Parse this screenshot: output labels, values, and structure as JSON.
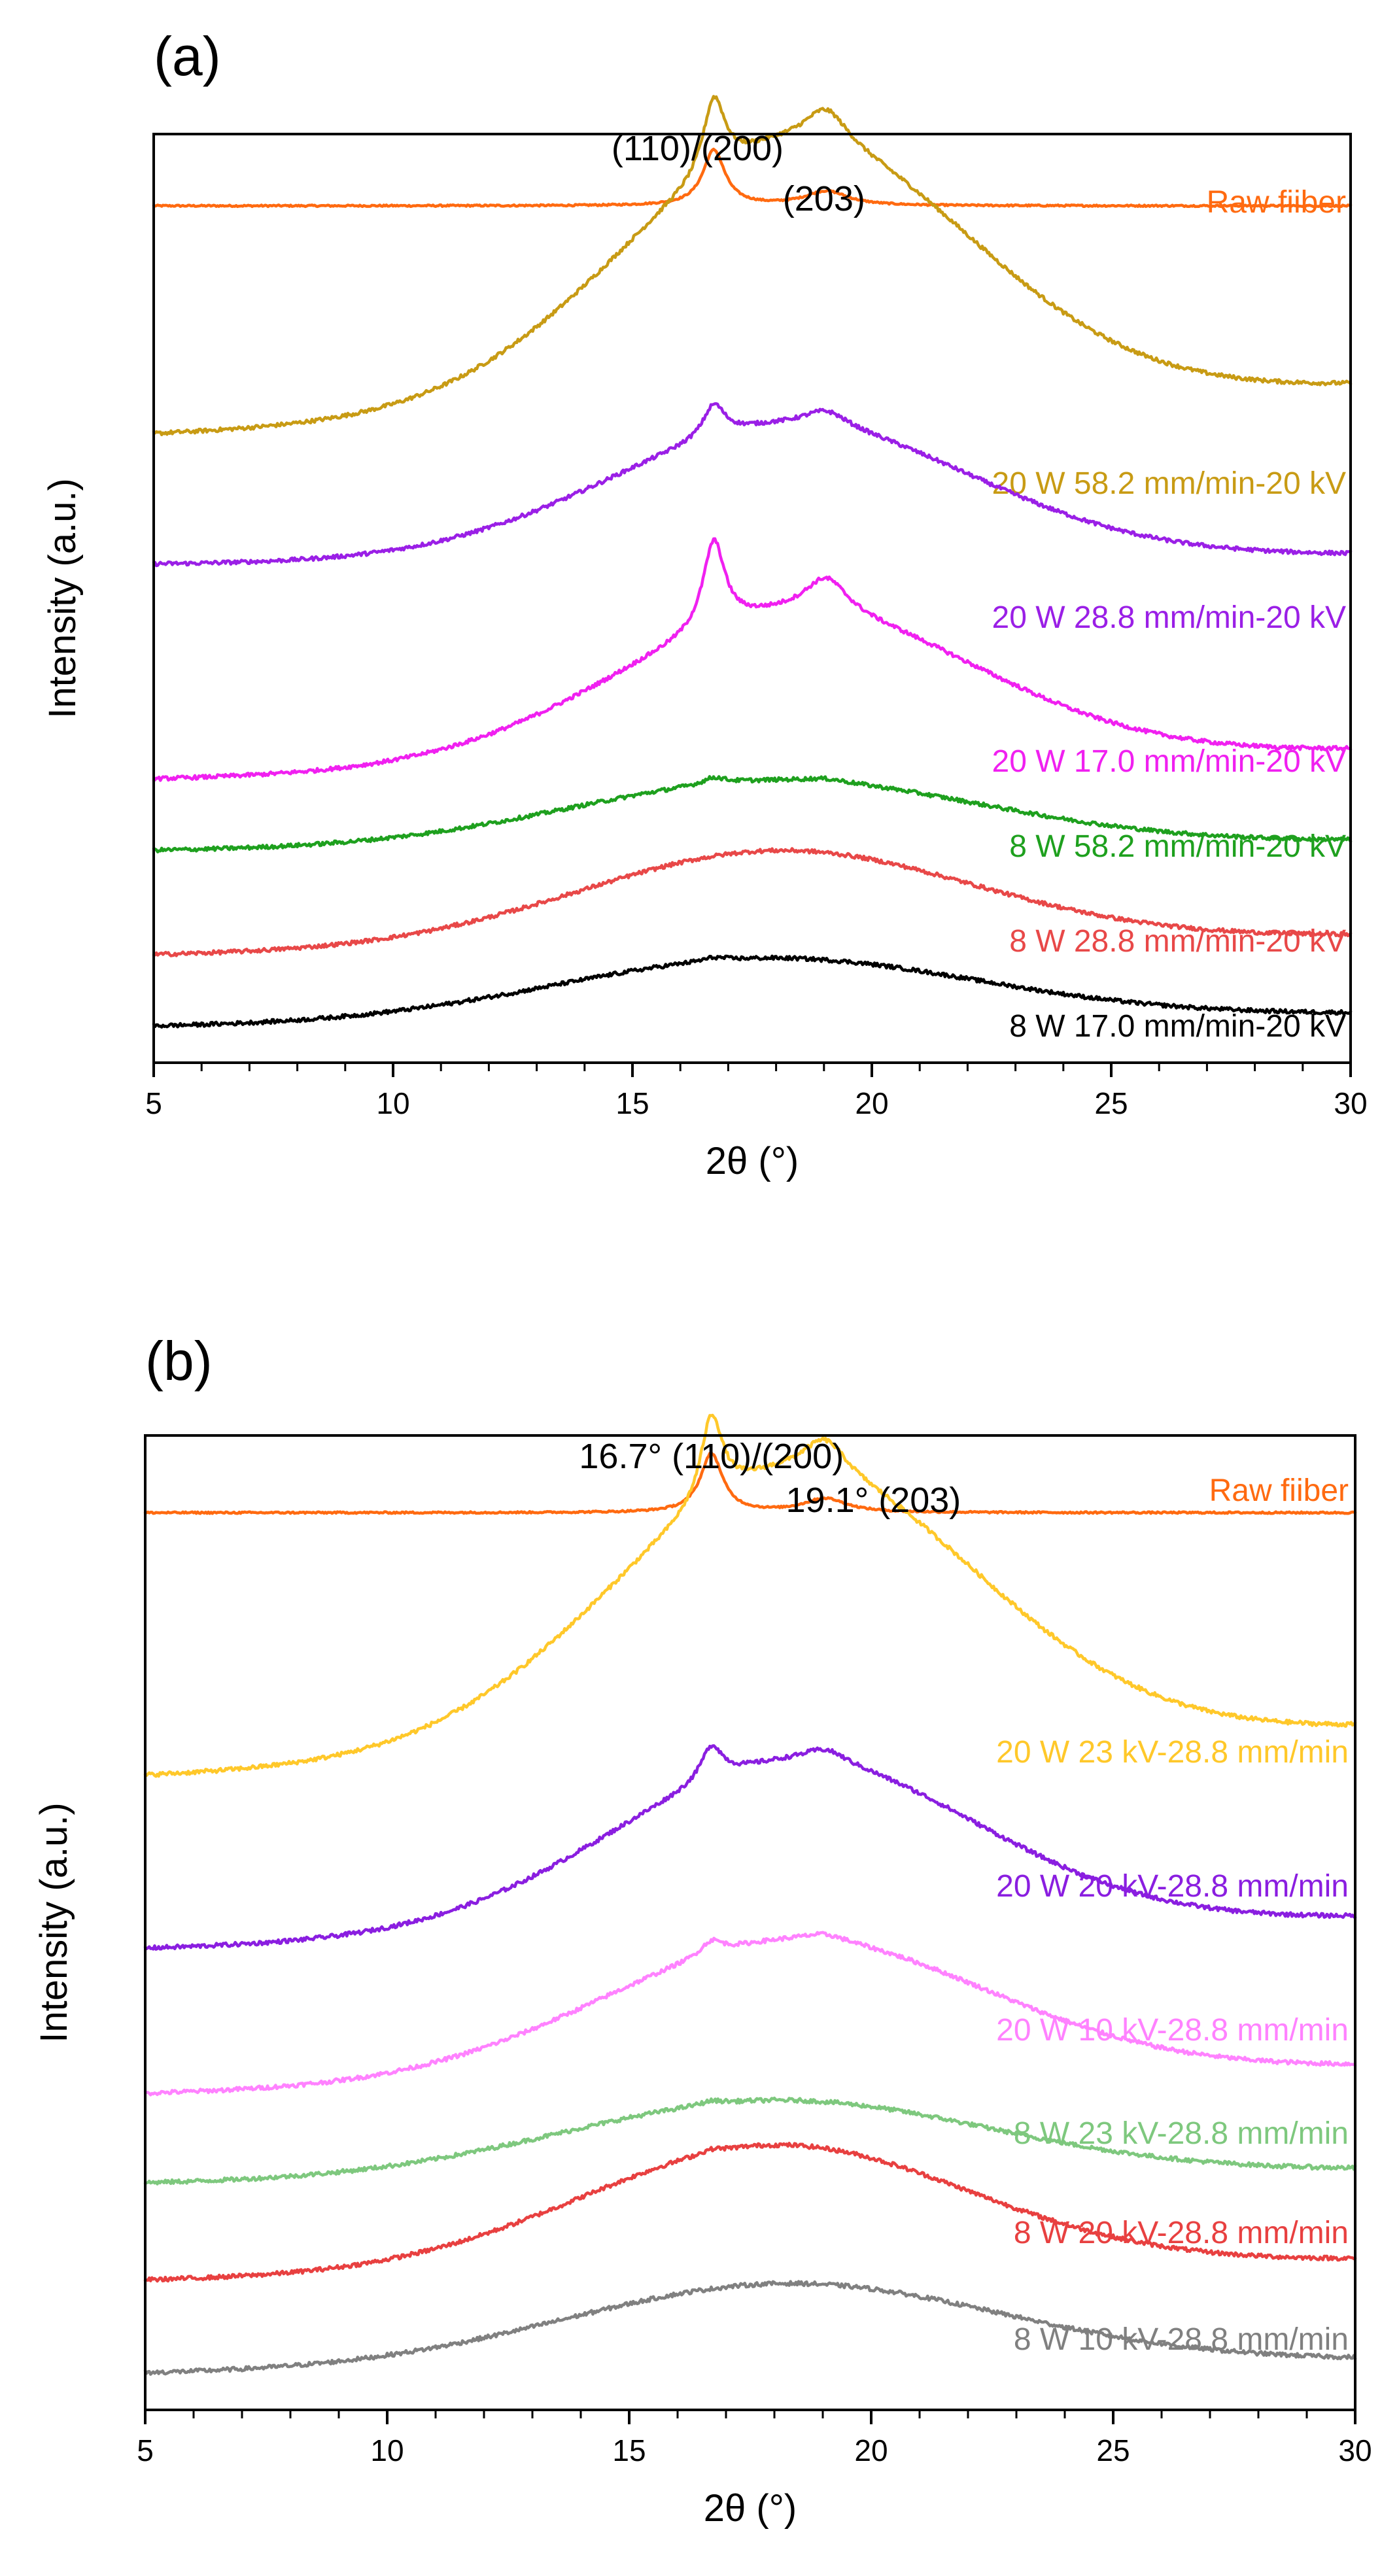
{
  "chart_data": [
    {
      "panel": "(a)",
      "type": "line",
      "xlabel": "2θ (°)",
      "ylabel": "Intensity (a.u.)",
      "xlim": [
        5,
        30
      ],
      "xticks": [
        5,
        10,
        15,
        20,
        25,
        30
      ],
      "annotations": [
        {
          "text": "(110)/(200)",
          "x": 16.7
        },
        {
          "text": "(203)",
          "x": 19.0
        }
      ],
      "series": [
        {
          "name": "Raw fiiber",
          "color": "#ff6a10",
          "shape": {
            "start": 0,
            "end": 0,
            "broad_h": 0,
            "broad_c": 18,
            "broad_w": 4.5,
            "p1": 0.85,
            "p2": 0.22
          }
        },
        {
          "name": "20 W 58.2 mm/min-20 kV",
          "color": "#c89b14",
          "shape": {
            "start": 0.05,
            "end": 0.8,
            "broad_h": 4.05,
            "broad_c": 18.4,
            "broad_w": 3.7,
            "p1": 1.15,
            "p2": 0.55
          }
        },
        {
          "name": "20 W 28.8 mm/min-20 kV",
          "color": "#9a1fe6",
          "shape": {
            "start": 0.1,
            "end": 0.25,
            "broad_h": 2.05,
            "broad_c": 18.3,
            "broad_w": 3.8,
            "p1": 0.5,
            "p2": 0.25
          }
        },
        {
          "name": "20 W 17.0 mm/min-20 kV",
          "color": "#f020f0",
          "shape": {
            "start": 0.1,
            "end": 0.55,
            "broad_h": 2.3,
            "broad_c": 18.4,
            "broad_w": 3.8,
            "p1": 1.35,
            "p2": 0.55
          }
        },
        {
          "name": "8 W 58.2 mm/min-20 kV",
          "color": "#1ea01e",
          "shape": {
            "start": 0.05,
            "end": 0.2,
            "broad_h": 1.0,
            "broad_c": 18.0,
            "broad_w": 4.3,
            "p1": 0.1,
            "p2": 0.05
          }
        },
        {
          "name": "8 W 28.8 mm/min-20 kV",
          "color": "#e84848",
          "shape": {
            "start": 0.05,
            "end": 0.35,
            "broad_h": 1.45,
            "broad_c": 18.0,
            "broad_w": 4.1,
            "p1": 0.0,
            "p2": 0.0
          }
        },
        {
          "name": "8 W 17.0 mm/min-20 kV",
          "color": "#000000",
          "shape": {
            "start": 0.05,
            "end": 0.25,
            "broad_h": 0.95,
            "broad_c": 17.8,
            "broad_w": 4.4,
            "p1": 0.05,
            "p2": 0.0
          }
        }
      ]
    },
    {
      "panel": "(b)",
      "type": "line",
      "xlabel": "2θ (°)",
      "ylabel": "Intensity (a.u.)",
      "xlim": [
        5,
        30
      ],
      "xticks": [
        5,
        10,
        15,
        20,
        25,
        30
      ],
      "annotations": [
        {
          "text": "16.7° (110)/(200)",
          "x": 16.7
        },
        {
          "text": "19.1° (203)",
          "x": 19.1
        }
      ],
      "series": [
        {
          "name": "Raw fiiber",
          "color": "#ff6a10",
          "shape": {
            "start": 0,
            "end": 0,
            "broad_h": 0,
            "broad_c": 18,
            "broad_w": 4.5,
            "p1": 0.85,
            "p2": 0.2
          }
        },
        {
          "name": "20 W 23 kV-28.8 mm/min",
          "color": "#ffc82a",
          "shape": {
            "start": 0.05,
            "end": 0.75,
            "broad_h": 4.0,
            "broad_c": 18.4,
            "broad_w": 3.8,
            "p1": 1.25,
            "p2": 0.5
          }
        },
        {
          "name": "20 W 20 kV-28.8 mm/min",
          "color": "#8a1ee0",
          "shape": {
            "start": 0.05,
            "end": 0.5,
            "broad_h": 2.45,
            "broad_c": 18.4,
            "broad_w": 3.8,
            "p1": 0.5,
            "p2": 0.2
          }
        },
        {
          "name": "20 W 10 kV-28.8 mm/min",
          "color": "#ff82ff",
          "shape": {
            "start": 0.05,
            "end": 0.45,
            "broad_h": 2.0,
            "broad_c": 18.4,
            "broad_w": 4.0,
            "p1": 0.2,
            "p2": 0.1
          }
        },
        {
          "name": "8 W 23 kV-28.8 mm/min",
          "color": "#7ec87e",
          "shape": {
            "start": 0.05,
            "end": 0.25,
            "broad_h": 1.1,
            "broad_c": 18.0,
            "broad_w": 4.4,
            "p1": 0.05,
            "p2": 0.0
          }
        },
        {
          "name": "8 W 20 kV-28.8 mm/min",
          "color": "#e84040",
          "shape": {
            "start": 0.05,
            "end": 0.35,
            "broad_h": 1.8,
            "broad_c": 18.0,
            "broad_w": 4.0,
            "p1": 0.05,
            "p2": 0.0
          }
        },
        {
          "name": "8 W 10 kV-28.8 mm/min",
          "color": "#808080",
          "shape": {
            "start": 0.05,
            "end": 0.25,
            "broad_h": 1.2,
            "broad_c": 18.2,
            "broad_w": 4.5,
            "p1": 0.0,
            "p2": 0.0
          }
        }
      ]
    }
  ]
}
